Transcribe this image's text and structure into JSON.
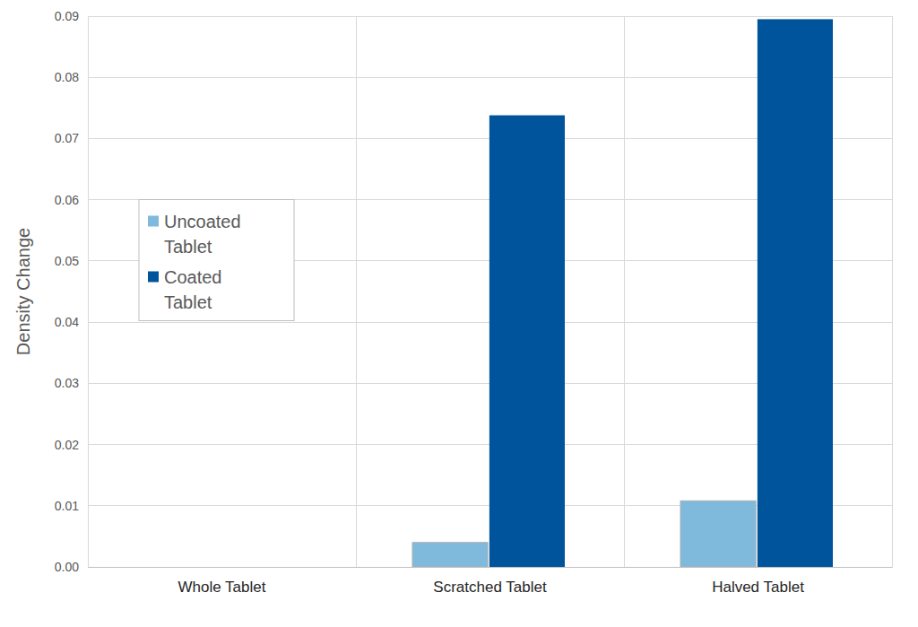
{
  "chart_data": {
    "type": "bar",
    "y_label": "Density Change",
    "categories": [
      "Whole Tablet",
      "Scratched Tablet",
      "Halved Tablet"
    ],
    "series": [
      {
        "name": "Uncoated Tablet",
        "color": "#7fbadc",
        "values": [
          0,
          0.004,
          0.0108
        ]
      },
      {
        "name": "Coated Tablet",
        "color": "#00549c",
        "values": [
          0,
          0.0738,
          0.0895
        ]
      }
    ],
    "ylim": [
      0,
      0.09
    ],
    "yticks": [
      {
        "value": 0,
        "label": "0.00"
      },
      0.01,
      0.02,
      0.03,
      0.04,
      0.05,
      0.06,
      0.07,
      0.08,
      0.09
    ],
    "grid": true,
    "legend": "left"
  }
}
